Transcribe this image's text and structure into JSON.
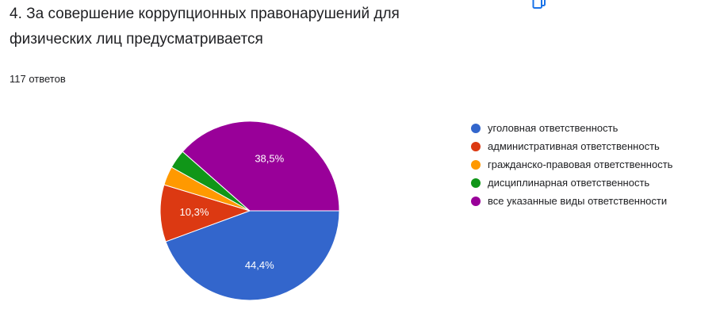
{
  "question": {
    "title": "4.  За совершение коррупционных правонарушений для физических лиц предусматривается",
    "response_count": "117 ответов"
  },
  "chart_data": {
    "type": "pie",
    "categories": [
      "уголовная ответственность",
      "административная ответственность",
      "гражданско-правовая ответственность",
      "дисциплинарная ответственность",
      "все указанные виды ответственности"
    ],
    "values": [
      44.4,
      10.3,
      3.4,
      3.4,
      38.5
    ],
    "data_labels": [
      "44,4%",
      "10,3%",
      "",
      "",
      "38,5%"
    ],
    "colors": [
      "#3366cc",
      "#dc3912",
      "#ff9900",
      "#109618",
      "#990099"
    ],
    "legend_position": "right",
    "start": "clockwise from 3 o'clock"
  }
}
